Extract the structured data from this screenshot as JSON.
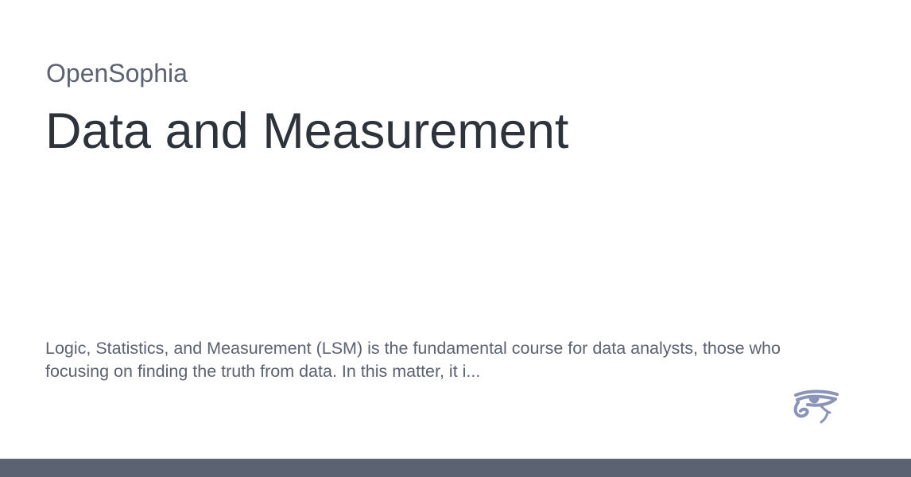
{
  "site": {
    "name": "OpenSophia"
  },
  "page": {
    "title": "Data and Measurement",
    "description": "Logic, Statistics, and Measurement (LSM) is the fundamental course for data analysts, those who focusing on finding the truth from data. In this matter, it i..."
  },
  "logo": {
    "icon": "eye-of-horus-icon",
    "color": "#8a93b8"
  },
  "colors": {
    "title": "#2d333b",
    "muted_text": "#5b6271",
    "footer_bar": "#5b6271",
    "background": "#ffffff"
  }
}
